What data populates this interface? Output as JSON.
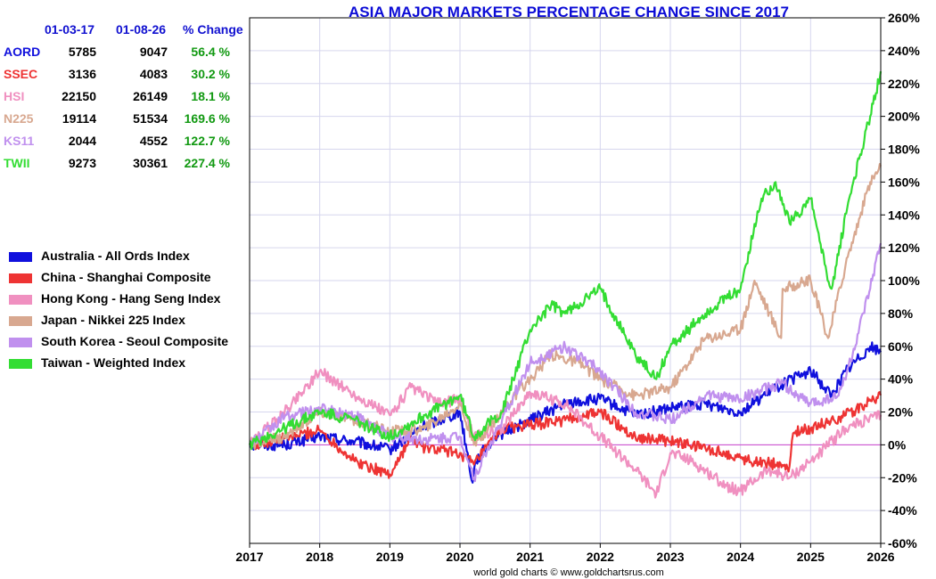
{
  "chart_data": {
    "type": "line",
    "title": "ASIA MAJOR MARKETS PERCENTAGE CHANGE SINCE 2017",
    "xlabel": "",
    "ylabel": "",
    "x_ticks": [
      "2017",
      "2018",
      "2019",
      "2020",
      "2021",
      "2022",
      "2023",
      "2024",
      "2025",
      "2026"
    ],
    "y_ticks": [
      "260%",
      "240%",
      "220%",
      "200%",
      "180%",
      "160%",
      "140%",
      "120%",
      "100%",
      "80%",
      "60%",
      "40%",
      "20%",
      "0%",
      "-20%",
      "-40%",
      "-60%"
    ],
    "xlim": [
      2017,
      2026
    ],
    "ylim": [
      -60,
      260
    ],
    "y_axis_side": "right",
    "grid": true,
    "legend_position": "left",
    "zero_line_color": "#cc44cc",
    "summary_table": {
      "headers": [
        "01-03-17",
        "01-08-26",
        "% Change"
      ],
      "rows": [
        {
          "code": "AORD",
          "start": "5785",
          "end": "9047",
          "change": "56.4 %",
          "color": "#1010dd"
        },
        {
          "code": "SSEC",
          "start": "3136",
          "end": "4083",
          "change": "30.2 %",
          "color": "#ee3333"
        },
        {
          "code": "HSI",
          "start": "22150",
          "end": "26149",
          "change": "18.1 %",
          "color": "#f090c0"
        },
        {
          "code": "N225",
          "start": "19114",
          "end": "51534",
          "change": "169.6 %",
          "color": "#d8a890"
        },
        {
          "code": "KS11",
          "start": "2044",
          "end": "4552",
          "change": "122.7 %",
          "color": "#c090ee"
        },
        {
          "code": "TWII",
          "start": "9273",
          "end": "30361",
          "change": "227.4 %",
          "color": "#33dd33"
        }
      ]
    },
    "series": [
      {
        "name": "Australia - All Ords Index",
        "color": "#1010dd",
        "x": [
          2017,
          2017.5,
          2018,
          2018.5,
          2019,
          2019.5,
          2020,
          2020.18,
          2020.22,
          2020.5,
          2021,
          2021.5,
          2022,
          2022.5,
          2023,
          2023.5,
          2024,
          2024.5,
          2025,
          2025.3,
          2025.5,
          2025.85,
          2026
        ],
        "y": [
          0,
          0,
          5,
          2,
          -3,
          12,
          20,
          -23,
          -10,
          5,
          15,
          25,
          28,
          18,
          22,
          25,
          20,
          35,
          45,
          30,
          45,
          60,
          56.4
        ]
      },
      {
        "name": "China - Shanghai Composite",
        "color": "#ee3333",
        "x": [
          2017,
          2017.5,
          2018,
          2018.5,
          2019,
          2019.3,
          2019.5,
          2020,
          2020.2,
          2020.6,
          2021,
          2021.5,
          2022,
          2022.5,
          2023,
          2023.5,
          2024,
          2024.2,
          2024.7,
          2024.75,
          2025,
          2025.5,
          2026
        ],
        "y": [
          0,
          4,
          9,
          -10,
          -18,
          4,
          -2,
          -5,
          -12,
          10,
          12,
          15,
          20,
          5,
          2,
          -2,
          -8,
          -10,
          -13,
          7,
          10,
          18,
          30.2
        ]
      },
      {
        "name": "Hong Kong - Hang Seng Index",
        "color": "#f090c0",
        "x": [
          2017,
          2017.5,
          2018,
          2018.5,
          2019,
          2019.3,
          2019.7,
          2020,
          2020.2,
          2020.6,
          2021,
          2021.5,
          2022,
          2022.5,
          2022.8,
          2023,
          2023.3,
          2023.8,
          2024,
          2024.4,
          2024.7,
          2025,
          2025.5,
          2026
        ],
        "y": [
          0,
          20,
          45,
          30,
          18,
          35,
          25,
          28,
          5,
          10,
          32,
          25,
          5,
          -15,
          -30,
          -5,
          -10,
          -25,
          -28,
          -15,
          -20,
          -10,
          10,
          18.1
        ]
      },
      {
        "name": "Japan - Nikkei 225 Index",
        "color": "#d8a890",
        "x": [
          2017,
          2017.5,
          2018,
          2018.5,
          2019,
          2019.5,
          2020,
          2020.2,
          2020.5,
          2021,
          2021.3,
          2021.7,
          2022,
          2022.5,
          2023,
          2023.5,
          2024,
          2024.2,
          2024.58,
          2024.6,
          2025,
          2025.25,
          2025.5,
          2025.85,
          2026
        ],
        "y": [
          0,
          5,
          20,
          15,
          8,
          10,
          25,
          0,
          15,
          40,
          55,
          50,
          40,
          30,
          35,
          65,
          70,
          100,
          65,
          95,
          100,
          65,
          110,
          160,
          169.6
        ]
      },
      {
        "name": "South Korea - Seoul Composite",
        "color": "#c090ee",
        "x": [
          2017,
          2017.5,
          2018,
          2018.5,
          2019,
          2019.5,
          2020,
          2020.2,
          2020.6,
          2021,
          2021.5,
          2022,
          2022.5,
          2023,
          2023.5,
          2024,
          2024.6,
          2024.8,
          2025,
          2025.4,
          2025.6,
          2025.85,
          2026
        ],
        "y": [
          0,
          17,
          22,
          18,
          5,
          3,
          5,
          -20,
          15,
          50,
          60,
          45,
          20,
          15,
          30,
          28,
          38,
          30,
          25,
          30,
          55,
          95,
          122.7
        ]
      },
      {
        "name": "Taiwan - Weighted Index",
        "color": "#33dd33",
        "x": [
          2017,
          2017.5,
          2018,
          2018.5,
          2019,
          2019.5,
          2020,
          2020.2,
          2020.6,
          2021,
          2021.3,
          2021.5,
          2022,
          2022.5,
          2022.8,
          2023,
          2023.5,
          2024,
          2024.3,
          2024.5,
          2024.7,
          2025,
          2025.2,
          2025.3,
          2025.55,
          2025.85,
          2026
        ],
        "y": [
          0,
          10,
          20,
          15,
          5,
          18,
          30,
          5,
          20,
          70,
          85,
          80,
          95,
          55,
          40,
          60,
          80,
          95,
          150,
          160,
          135,
          150,
          110,
          95,
          150,
          200,
          227.4
        ]
      }
    ]
  },
  "credit": "world gold charts © www.goldchartsrus.com"
}
